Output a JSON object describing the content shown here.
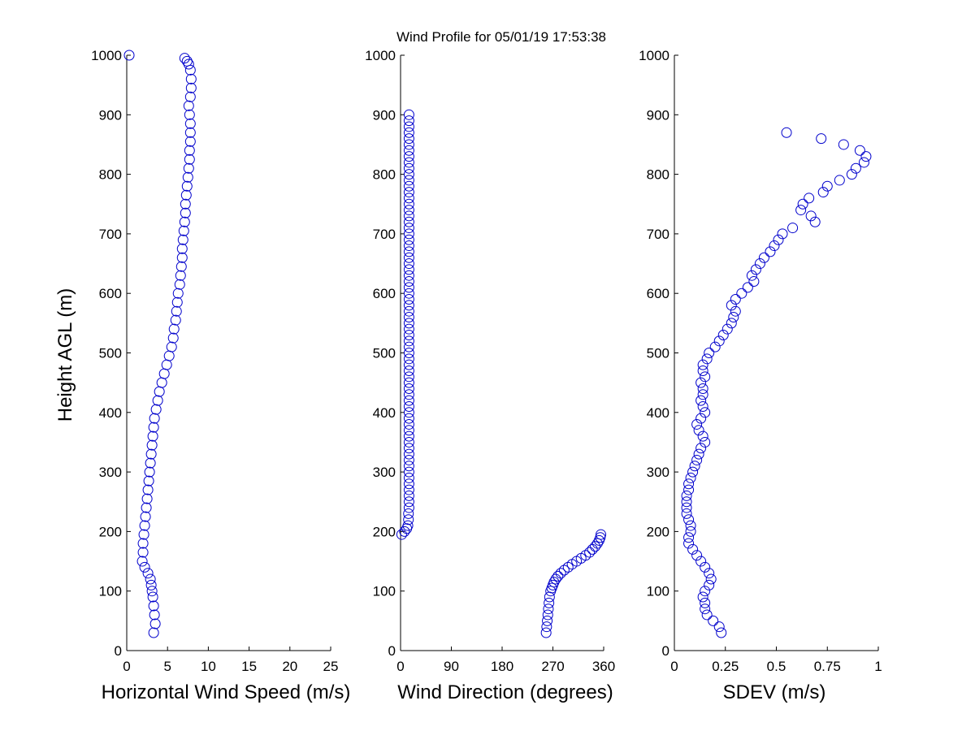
{
  "figure": {
    "title": "Wind Profile for  05/01/19 17:53:38",
    "ylabel": "Height AGL (m)"
  },
  "colors": {
    "marker": "#0000cc",
    "axis": "#000000",
    "background": "#ffffff"
  },
  "chart_data": [
    {
      "type": "scatter",
      "xlabel": "Horizontal Wind Speed (m/s)",
      "ylabel": "Height AGL (m)",
      "xlim": [
        0,
        25
      ],
      "ylim": [
        0,
        1000
      ],
      "xticks": [
        "0",
        "5",
        "10",
        "15",
        "20",
        "25"
      ],
      "yticks": [
        "0",
        "100",
        "200",
        "300",
        "400",
        "500",
        "600",
        "700",
        "800",
        "900",
        "1000"
      ],
      "grid": false,
      "marker": "open-circle",
      "x": [
        3.3,
        3.5,
        3.4,
        3.3,
        3.2,
        3.1,
        3.0,
        2.9,
        2.6,
        2.2,
        1.9,
        2.0,
        2.0,
        2.1,
        2.2,
        2.3,
        2.4,
        2.5,
        2.6,
        2.7,
        2.8,
        2.9,
        3.0,
        3.1,
        3.2,
        3.3,
        3.4,
        3.6,
        3.8,
        4.0,
        4.3,
        4.6,
        4.9,
        5.2,
        5.5,
        5.7,
        5.8,
        6.0,
        6.1,
        6.2,
        6.3,
        6.5,
        6.6,
        6.7,
        6.8,
        6.8,
        6.9,
        7.0,
        7.1,
        7.2,
        7.2,
        7.3,
        7.4,
        7.5,
        7.6,
        7.7,
        7.7,
        7.8,
        7.8,
        7.8,
        7.7,
        7.6,
        7.8,
        7.9,
        7.9,
        7.8,
        7.6,
        7.4,
        7.1,
        0.3
      ],
      "y": [
        30,
        45,
        60,
        75,
        90,
        100,
        110,
        120,
        130,
        140,
        150,
        165,
        180,
        195,
        210,
        225,
        240,
        255,
        270,
        285,
        300,
        315,
        330,
        345,
        360,
        375,
        390,
        405,
        420,
        435,
        450,
        465,
        480,
        495,
        510,
        525,
        540,
        555,
        570,
        585,
        600,
        615,
        630,
        645,
        660,
        675,
        690,
        705,
        720,
        735,
        750,
        765,
        780,
        795,
        810,
        825,
        840,
        855,
        870,
        885,
        900,
        915,
        930,
        945,
        960,
        975,
        985,
        990,
        995,
        1000
      ]
    },
    {
      "type": "scatter",
      "xlabel": "Wind Direction (degrees)",
      "ylabel": "",
      "xlim": [
        0,
        360
      ],
      "ylim": [
        0,
        1000
      ],
      "xticks": [
        "0",
        "90",
        "180",
        "270",
        "360"
      ],
      "yticks": [
        "0",
        "100",
        "200",
        "300",
        "400",
        "500",
        "600",
        "700",
        "800",
        "900",
        "1000"
      ],
      "grid": false,
      "marker": "open-circle",
      "x": [
        258,
        259,
        260,
        261,
        262,
        263,
        264,
        266,
        268,
        270,
        272,
        275,
        279,
        284,
        290,
        297,
        304,
        312,
        320,
        328,
        335,
        340,
        345,
        349,
        352,
        354,
        355,
        2,
        7,
        11,
        13,
        14,
        14,
        15,
        15,
        15,
        15,
        15,
        15,
        15,
        15,
        15,
        15,
        15,
        15,
        15,
        15,
        15,
        15,
        15,
        15,
        15,
        15,
        15,
        15,
        15,
        15,
        15,
        15,
        15,
        15,
        15,
        15,
        15,
        15,
        15,
        15,
        15,
        15,
        15,
        15,
        15,
        15,
        15,
        15,
        15,
        15,
        15,
        15,
        15,
        15,
        15,
        15,
        15,
        15,
        15,
        15,
        15,
        15,
        15,
        15,
        15,
        15,
        15,
        15,
        15,
        15,
        15,
        15,
        15
      ],
      "y": [
        30,
        40,
        50,
        60,
        70,
        80,
        90,
        100,
        105,
        110,
        115,
        120,
        125,
        130,
        135,
        140,
        145,
        150,
        155,
        160,
        165,
        170,
        175,
        180,
        185,
        190,
        195,
        195,
        200,
        205,
        210,
        220,
        230,
        240,
        250,
        260,
        270,
        280,
        290,
        300,
        310,
        320,
        330,
        340,
        350,
        360,
        370,
        380,
        390,
        400,
        410,
        420,
        430,
        440,
        450,
        460,
        470,
        480,
        490,
        500,
        510,
        520,
        530,
        540,
        550,
        560,
        570,
        580,
        590,
        600,
        610,
        620,
        630,
        640,
        650,
        660,
        670,
        680,
        690,
        700,
        710,
        720,
        730,
        740,
        750,
        760,
        770,
        780,
        790,
        800,
        810,
        820,
        830,
        840,
        850,
        860,
        870,
        880,
        890,
        900
      ]
    },
    {
      "type": "scatter",
      "xlabel": "SDEV  (m/s)",
      "ylabel": "",
      "xlim": [
        0,
        1
      ],
      "ylim": [
        0,
        1000
      ],
      "xticks": [
        "0",
        "0.25",
        "0.5",
        "0.75",
        "1"
      ],
      "yticks": [
        "0",
        "100",
        "200",
        "300",
        "400",
        "500",
        "600",
        "700",
        "800",
        "900",
        "1000"
      ],
      "grid": false,
      "marker": "open-circle",
      "x": [
        0.23,
        0.22,
        0.19,
        0.16,
        0.15,
        0.15,
        0.14,
        0.15,
        0.17,
        0.18,
        0.17,
        0.15,
        0.13,
        0.11,
        0.09,
        0.07,
        0.07,
        0.08,
        0.08,
        0.07,
        0.06,
        0.06,
        0.06,
        0.06,
        0.07,
        0.07,
        0.08,
        0.09,
        0.1,
        0.11,
        0.12,
        0.13,
        0.15,
        0.14,
        0.12,
        0.11,
        0.13,
        0.15,
        0.14,
        0.13,
        0.14,
        0.14,
        0.13,
        0.15,
        0.14,
        0.14,
        0.16,
        0.17,
        0.2,
        0.22,
        0.24,
        0.26,
        0.28,
        0.29,
        0.3,
        0.28,
        0.3,
        0.33,
        0.36,
        0.39,
        0.38,
        0.4,
        0.42,
        0.44,
        0.47,
        0.49,
        0.51,
        0.53,
        0.58,
        0.69,
        0.67,
        0.62,
        0.63,
        0.66,
        0.73,
        0.75,
        0.81,
        0.87,
        0.89,
        0.93,
        0.94,
        0.91,
        0.83,
        0.72,
        0.55
      ],
      "y": [
        30,
        40,
        50,
        60,
        70,
        80,
        90,
        100,
        110,
        120,
        130,
        140,
        150,
        160,
        170,
        180,
        190,
        200,
        210,
        220,
        230,
        240,
        250,
        260,
        270,
        280,
        290,
        300,
        310,
        320,
        330,
        340,
        350,
        360,
        370,
        380,
        390,
        400,
        410,
        420,
        430,
        440,
        450,
        460,
        470,
        480,
        490,
        500,
        510,
        520,
        530,
        540,
        550,
        560,
        570,
        580,
        590,
        600,
        610,
        620,
        630,
        640,
        650,
        660,
        670,
        680,
        690,
        700,
        710,
        720,
        730,
        740,
        750,
        760,
        770,
        780,
        790,
        800,
        810,
        820,
        830,
        840,
        850,
        860,
        870
      ]
    }
  ]
}
